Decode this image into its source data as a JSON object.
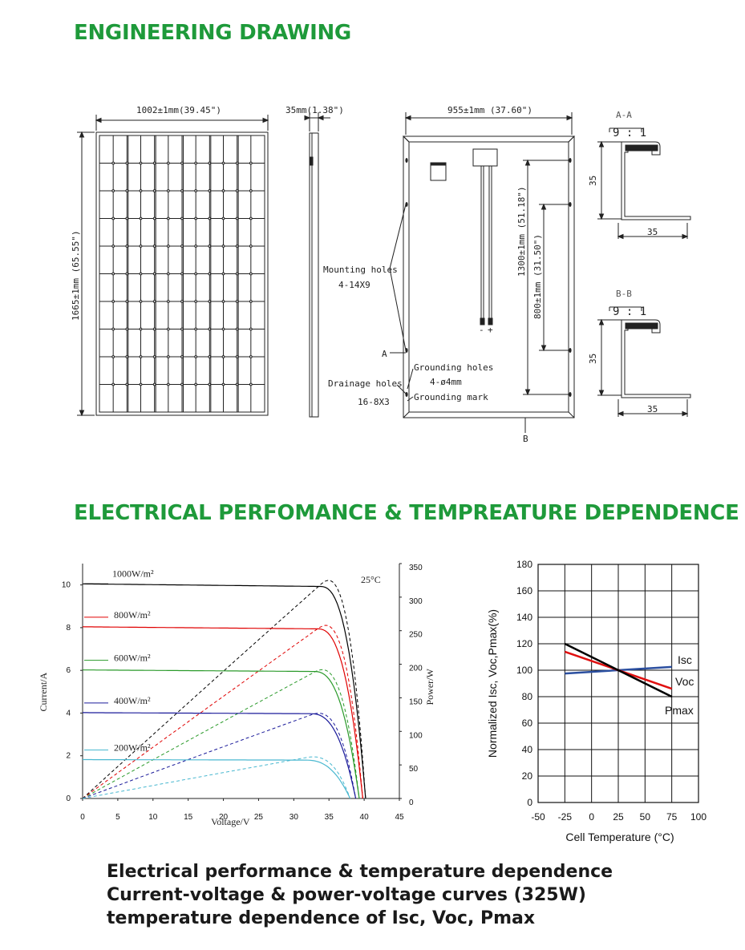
{
  "sections": {
    "engineering_title": "ENGINEERING DRAWING",
    "electrical_title": "ELECTRICAL PERFOMANCE & TEMPREATURE DEPENDENCE"
  },
  "drawing": {
    "front_width": "1002±1mm(39.45\")",
    "front_height": "1665±1mm (65.55\")",
    "side_thickness": "35mm(1.38\")",
    "back_width": "955±1mm (37.60\")",
    "back_dim_1300": "1300±1mm (51.18\")",
    "back_dim_800": "800±1mm (31.50\")",
    "mounting_holes": "Mounting holes",
    "mounting_spec": "4-14X9",
    "grounding_holes": "Grounding holes",
    "grounding_spec": "4-ø4mm",
    "grounding_mark": "Grounding mark",
    "drainage_holes": "Drainage holes",
    "drainage_spec": "16-8X3",
    "label_a": "A",
    "label_b": "B",
    "plus": "+",
    "minus": "-",
    "section_aa": "A-A",
    "section_bb": "B-B",
    "scale": "9 : 1",
    "profile_dim": "35"
  },
  "colors": {
    "title_green": "#1e9a3a",
    "c1000": "#000000",
    "c800": "#e00000",
    "c600": "#2a9a2a",
    "c400": "#1a1a9a",
    "c200": "#4ab8d0",
    "isc": "#2b4fa0",
    "voc": "#e01010",
    "pmax": "#000000"
  },
  "chart_data": [
    {
      "type": "line",
      "annotation": "25°C",
      "xlabel": "Voltage/V",
      "ylabel": "Current/A",
      "y2label": "Power/W",
      "xlim": [
        0,
        45
      ],
      "ylim": [
        0,
        11
      ],
      "y2lim": [
        0,
        350
      ],
      "x_ticks": [
        "0",
        "5",
        "10",
        "15",
        "20",
        "25",
        "30",
        "35",
        "40",
        "45"
      ],
      "y_ticks": [
        "0",
        "2",
        "4",
        "6",
        "8",
        "10"
      ],
      "y2_ticks": [
        "0",
        "50",
        "100",
        "150",
        "200",
        "250",
        "300",
        "350"
      ],
      "series": [
        {
          "name": "1000W/m²",
          "isc": 10.05,
          "voc": 40.2,
          "pmax": 325
        },
        {
          "name": "800W/m²",
          "isc": 8.04,
          "voc": 39.8,
          "pmax": 258
        },
        {
          "name": "600W/m²",
          "isc": 6.02,
          "voc": 39.3,
          "pmax": 192
        },
        {
          "name": "400W/m²",
          "isc": 4.02,
          "voc": 38.8,
          "pmax": 127
        },
        {
          "name": "200W/m²",
          "isc": 1.82,
          "voc": 38.0,
          "pmax": 62
        }
      ]
    },
    {
      "type": "line",
      "xlabel": "Cell Temperature (°C)",
      "ylabel": "Normalized Isc, Voc,Pmax(%)",
      "xlim": [
        -50,
        100
      ],
      "ylim": [
        0,
        180
      ],
      "x_ticks": [
        "-50",
        "-25",
        "0",
        "25",
        "50",
        "75",
        "100"
      ],
      "y_ticks": [
        "0",
        "20",
        "40",
        "60",
        "80",
        "100",
        "120",
        "140",
        "160",
        "180"
      ],
      "grid": true,
      "series": [
        {
          "name": "Isc",
          "x": [
            -25,
            75
          ],
          "y": [
            97.5,
            102.5
          ]
        },
        {
          "name": "Voc",
          "x": [
            -25,
            75
          ],
          "y": [
            114,
            86
          ]
        },
        {
          "name": "Pmax",
          "x": [
            -25,
            75
          ],
          "y": [
            120,
            80
          ]
        }
      ]
    }
  ],
  "caption": {
    "line1": "Electrical performance & temperature dependence",
    "line2": "Current-voltage & power-voltage curves (325W)",
    "line3": "temperature dependence of Isc, Voc, Pmax"
  }
}
